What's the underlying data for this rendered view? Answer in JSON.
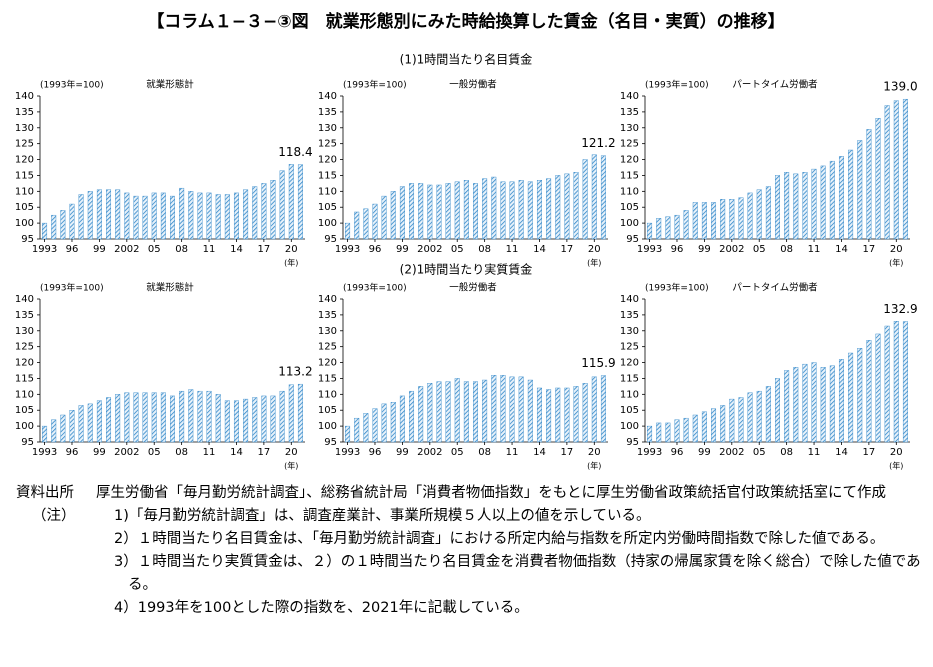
{
  "title": "【コラム１−３−③図　就業形態別にみた時給換算した賃金（名目・実質）の推移】",
  "section_titles": [
    "(1)1時間当たり名目賃金",
    "(2)1時間当たり実質賃金"
  ],
  "chart_data": [
    {
      "type": "bar",
      "title": "就業形態計",
      "y_unit": "(1993年=100)",
      "x_unit": "(年)",
      "color": "#2f86c8",
      "categories": [
        "1993",
        null,
        null,
        "96",
        null,
        null,
        "99",
        null,
        null,
        "2002",
        null,
        null,
        "05",
        null,
        null,
        "08",
        null,
        null,
        "11",
        null,
        null,
        "14",
        null,
        null,
        "17",
        null,
        null,
        "20",
        null
      ],
      "values": [
        100,
        102.5,
        104,
        106,
        109,
        110,
        110.5,
        110.5,
        110.5,
        109.5,
        108.5,
        108.5,
        109.5,
        109.5,
        108.5,
        111,
        110,
        109.5,
        109.5,
        109,
        109,
        109.5,
        110.5,
        111.5,
        112.5,
        113.5,
        116.5,
        118.5,
        118.4
      ],
      "value_labels": [
        null,
        null,
        null,
        null,
        null,
        null,
        null,
        null,
        null,
        null,
        null,
        null,
        null,
        null,
        null,
        null,
        null,
        null,
        null,
        null,
        null,
        null,
        null,
        null,
        null,
        null,
        null,
        null,
        "118.4"
      ],
      "ylim": [
        95,
        140
      ],
      "yticks": [
        95,
        100,
        105,
        110,
        115,
        120,
        125,
        130,
        135,
        140
      ]
    },
    {
      "type": "bar",
      "title": "一般労働者",
      "y_unit": "(1993年=100)",
      "x_unit": "(年)",
      "color": "#2f86c8",
      "categories": [
        "1993",
        null,
        null,
        "96",
        null,
        null,
        "99",
        null,
        null,
        "2002",
        null,
        null,
        "05",
        null,
        null,
        "08",
        null,
        null,
        "11",
        null,
        null,
        "14",
        null,
        null,
        "17",
        null,
        null,
        "20",
        null
      ],
      "values": [
        100,
        103.5,
        104.5,
        106,
        108.5,
        110,
        111.5,
        112.5,
        112.5,
        112,
        112,
        112.5,
        113,
        113.5,
        112.5,
        114,
        114.5,
        113,
        113,
        113.5,
        113,
        113.5,
        114,
        115,
        115.5,
        116,
        120,
        121.5,
        121.2
      ],
      "value_labels": [
        null,
        null,
        null,
        null,
        null,
        null,
        null,
        null,
        null,
        null,
        null,
        null,
        null,
        null,
        null,
        null,
        null,
        null,
        null,
        null,
        null,
        null,
        null,
        null,
        null,
        null,
        null,
        null,
        "121.2"
      ],
      "ylim": [
        95,
        140
      ],
      "yticks": [
        95,
        100,
        105,
        110,
        115,
        120,
        125,
        130,
        135,
        140
      ]
    },
    {
      "type": "bar",
      "title": "パートタイム労働者",
      "y_unit": "(1993年=100)",
      "x_unit": "(年)",
      "color": "#2f86c8",
      "categories": [
        "1993",
        null,
        null,
        "96",
        null,
        null,
        "99",
        null,
        null,
        "2002",
        null,
        null,
        "05",
        null,
        null,
        "08",
        null,
        null,
        "11",
        null,
        null,
        "14",
        null,
        null,
        "17",
        null,
        null,
        "20",
        null
      ],
      "values": [
        100,
        101.5,
        102,
        102.5,
        104,
        106.5,
        106.5,
        106.5,
        107.5,
        107.5,
        108,
        109.5,
        110.5,
        111.5,
        115,
        116,
        115.5,
        116,
        117,
        118,
        119.5,
        121,
        123,
        126,
        129.5,
        133,
        137,
        138.5,
        139
      ],
      "value_labels": [
        null,
        null,
        null,
        null,
        null,
        null,
        null,
        null,
        null,
        null,
        null,
        null,
        null,
        null,
        null,
        null,
        null,
        null,
        null,
        null,
        null,
        null,
        null,
        null,
        null,
        null,
        null,
        null,
        "139.0"
      ],
      "ylim": [
        95,
        140
      ],
      "yticks": [
        95,
        100,
        105,
        110,
        115,
        120,
        125,
        130,
        135,
        140
      ]
    },
    {
      "type": "bar",
      "title": "就業形態計",
      "y_unit": "(1993年=100)",
      "x_unit": "(年)",
      "color": "#2f86c8",
      "categories": [
        "1993",
        null,
        null,
        "96",
        null,
        null,
        "99",
        null,
        null,
        "2002",
        null,
        null,
        "05",
        null,
        null,
        "08",
        null,
        null,
        "11",
        null,
        null,
        "14",
        null,
        null,
        "17",
        null,
        null,
        "20",
        null
      ],
      "values": [
        100,
        102,
        103.5,
        105,
        106.5,
        107,
        108,
        109,
        110,
        110.5,
        110.5,
        110.5,
        110.5,
        110.5,
        109.5,
        111,
        111.5,
        111,
        111,
        110,
        108,
        108,
        108.5,
        109,
        109.5,
        109.5,
        111,
        113,
        113.2
      ],
      "value_labels": [
        null,
        null,
        null,
        null,
        null,
        null,
        null,
        null,
        null,
        null,
        null,
        null,
        null,
        null,
        null,
        null,
        null,
        null,
        null,
        null,
        null,
        null,
        null,
        null,
        null,
        null,
        null,
        null,
        "113.2"
      ],
      "ylim": [
        95,
        140
      ],
      "yticks": [
        95,
        100,
        105,
        110,
        115,
        120,
        125,
        130,
        135,
        140
      ]
    },
    {
      "type": "bar",
      "title": "一般労働者",
      "y_unit": "(1993年=100)",
      "x_unit": "(年)",
      "color": "#2f86c8",
      "categories": [
        "1993",
        null,
        null,
        "96",
        null,
        null,
        "99",
        null,
        null,
        "2002",
        null,
        null,
        "05",
        null,
        null,
        "08",
        null,
        null,
        "11",
        null,
        null,
        "14",
        null,
        null,
        "17",
        null,
        null,
        "20",
        null
      ],
      "values": [
        100,
        102.5,
        104,
        105.5,
        107,
        107.5,
        109.5,
        111,
        112.5,
        113.5,
        114,
        114,
        115,
        114,
        114,
        114.5,
        116,
        116,
        115.5,
        115.5,
        114.5,
        112,
        111.5,
        112,
        112,
        112.5,
        113.5,
        115.5,
        115.9
      ],
      "value_labels": [
        null,
        null,
        null,
        null,
        null,
        null,
        null,
        null,
        null,
        null,
        null,
        null,
        null,
        null,
        null,
        null,
        null,
        null,
        null,
        null,
        null,
        null,
        null,
        null,
        null,
        null,
        null,
        null,
        "115.9"
      ],
      "ylim": [
        95,
        140
      ],
      "yticks": [
        95,
        100,
        105,
        110,
        115,
        120,
        125,
        130,
        135,
        140
      ]
    },
    {
      "type": "bar",
      "title": "パートタイム労働者",
      "y_unit": "(1993年=100)",
      "x_unit": "(年)",
      "color": "#2f86c8",
      "categories": [
        "1993",
        null,
        null,
        "96",
        null,
        null,
        "99",
        null,
        null,
        "2002",
        null,
        null,
        "05",
        null,
        null,
        "08",
        null,
        null,
        "11",
        null,
        null,
        "14",
        null,
        null,
        "17",
        null,
        null,
        "20",
        null
      ],
      "values": [
        100,
        101,
        101,
        102,
        102.5,
        103.5,
        104.5,
        105.5,
        106.5,
        108.5,
        109,
        110.5,
        111,
        112.5,
        115,
        117.5,
        118.5,
        119.5,
        120,
        118.5,
        119,
        121,
        123,
        124.5,
        127,
        129,
        131.5,
        133,
        132.9
      ],
      "value_labels": [
        null,
        null,
        null,
        null,
        null,
        null,
        null,
        null,
        null,
        null,
        null,
        null,
        null,
        null,
        null,
        null,
        null,
        null,
        null,
        null,
        null,
        null,
        null,
        null,
        null,
        null,
        null,
        null,
        "132.9"
      ],
      "ylim": [
        95,
        140
      ],
      "yticks": [
        95,
        100,
        105,
        110,
        115,
        120,
        125,
        130,
        135,
        140
      ]
    }
  ],
  "notes": {
    "source_label": "資料出所",
    "source": "厚生労働省「毎月勤労統計調査」、総務省統計局「消費者物価指数」をもとに厚生労働省政策統括官付政策統括室にて作成",
    "note_label": "（注）",
    "items": [
      "1)「毎月勤労統計調査」は、調査産業計、事業所規模５人以上の値を示している。",
      "2）１時間当たり名目賃金は、「毎月勤労統計調査」における所定内給与指数を所定内労働時間指数で除した値である。",
      "3）１時間当たり実質賃金は、２）の１時間当たり名目賃金を消費者物価指数（持家の帰属家賃を除く総合）で除した値である。",
      "4）1993年を100とした際の指数を、2021年に記載している。"
    ]
  }
}
